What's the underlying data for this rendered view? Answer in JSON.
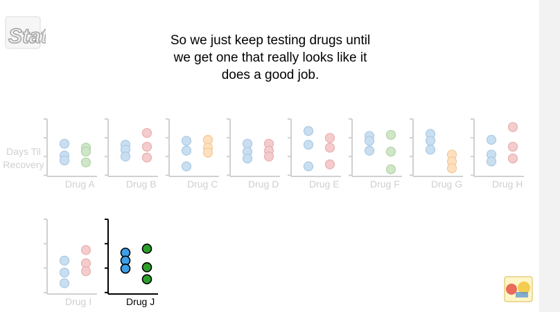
{
  "caption": "So we just keep testing drugs until\nwe get one that really looks like it\ndoes a good job.",
  "logo_text": "StatQuest",
  "y_axis_label": "Days Til\nRecovery",
  "colors": {
    "faded_axis": "#d0d0d0",
    "faded_label": "#cfcfcf",
    "active_axis": "#000000",
    "blue_faded": "#c9dff0",
    "blue_faded_stroke": "#a9c9e6",
    "green_faded": "#cfe6c8",
    "green_faded_stroke": "#b0d4a6",
    "red_faded": "#f4cccc",
    "red_faded_stroke": "#e9aeb0",
    "orange_faded": "#fde0c0",
    "orange_faded_stroke": "#f5c795",
    "blue_active": "#3ea0e6",
    "green_active": "#2c9e2c",
    "active_stroke": "#000000"
  },
  "panels": [
    {
      "label": "Drug A",
      "active": false,
      "left": {
        "color": "blue",
        "values": [
          2.9,
          1.7,
          1.2
        ]
      },
      "right": {
        "color": "green",
        "values": [
          2.5,
          2.1,
          1.0
        ]
      }
    },
    {
      "label": "Drug B",
      "active": false,
      "left": {
        "color": "blue",
        "values": [
          2.8,
          2.3,
          1.6
        ]
      },
      "right": {
        "color": "red",
        "values": [
          4.0,
          2.6,
          1.5
        ]
      }
    },
    {
      "label": "Drug C",
      "active": false,
      "left": {
        "color": "blue",
        "values": [
          3.2,
          2.2,
          0.6
        ]
      },
      "right": {
        "color": "orange",
        "values": [
          3.3,
          2.5,
          2.0
        ]
      }
    },
    {
      "label": "Drug D",
      "active": false,
      "left": {
        "color": "blue",
        "values": [
          2.9,
          2.1,
          1.4
        ]
      },
      "right": {
        "color": "red",
        "values": [
          2.9,
          2.2,
          1.6
        ]
      }
    },
    {
      "label": "Drug E",
      "active": false,
      "left": {
        "color": "blue",
        "values": [
          4.2,
          2.8,
          0.6
        ]
      },
      "right": {
        "color": "red",
        "values": [
          3.5,
          2.5,
          0.8
        ]
      }
    },
    {
      "label": "Drug F",
      "active": false,
      "left": {
        "color": "blue",
        "values": [
          3.7,
          3.2,
          2.2
        ]
      },
      "right": {
        "color": "green",
        "values": [
          3.8,
          2.1,
          0.3
        ]
      }
    },
    {
      "label": "Drug G",
      "active": false,
      "left": {
        "color": "blue",
        "values": [
          3.9,
          3.2,
          2.3
        ]
      },
      "right": {
        "color": "orange",
        "values": [
          1.8,
          1.1,
          0.4
        ]
      }
    },
    {
      "label": "Drug H",
      "active": false,
      "left": {
        "color": "blue",
        "values": [
          3.3,
          1.8,
          1.1
        ]
      },
      "right": {
        "color": "red",
        "values": [
          4.6,
          2.6,
          1.4
        ]
      }
    },
    {
      "label": "Drug I",
      "active": false,
      "left": {
        "color": "blue",
        "values": [
          2.2,
          1.3,
          0.5
        ]
      },
      "right": {
        "color": "red",
        "values": [
          3.0,
          2.0,
          1.4
        ]
      }
    },
    {
      "label": "Drug J",
      "active": true,
      "left": {
        "color": "blue",
        "values": [
          2.8,
          2.2,
          1.6
        ]
      },
      "right": {
        "color": "green",
        "values": [
          3.1,
          1.7,
          0.8
        ]
      }
    }
  ]
}
